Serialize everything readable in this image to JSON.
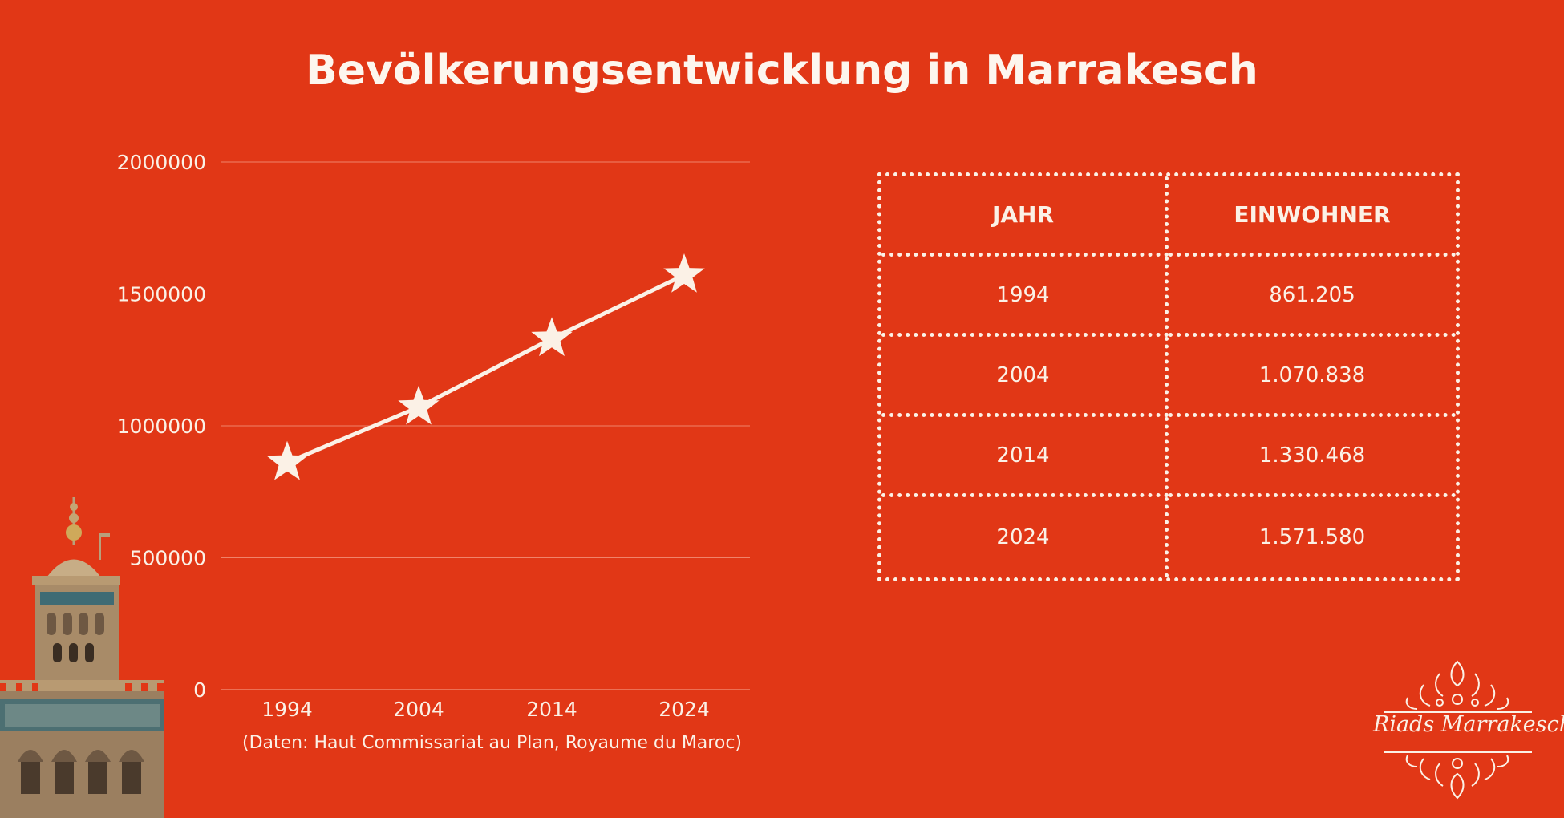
{
  "title": "Bevölkerungsentwicklung in Marrakesch",
  "source": "(Daten: Haut Commissariat au Plan, Royaume du Maroc)",
  "chart_data": {
    "type": "line",
    "title": "Bevölkerungsentwicklung in Marrakesch",
    "xlabel": "",
    "ylabel": "",
    "categories": [
      "1994",
      "2004",
      "2014",
      "2024"
    ],
    "values": [
      861205,
      1070838,
      1330468,
      1571580
    ],
    "yticks": [
      {
        "value": 0,
        "label": "0"
      },
      {
        "value": 500000,
        "label": "500000"
      },
      {
        "value": 1000000,
        "label": "1000000"
      },
      {
        "value": 1500000,
        "label": "1500000"
      },
      {
        "value": 2000000,
        "label": "2000000"
      }
    ],
    "ylim": [
      0,
      2000000
    ],
    "grid": true,
    "marker": "star",
    "colors": {
      "line": "#fbf1e6",
      "grid": "#f0836a"
    }
  },
  "table": {
    "headers": [
      "JAHR",
      "EINWOHNER"
    ],
    "rows": [
      [
        "1994",
        "861.205"
      ],
      [
        "2004",
        "1.070.838"
      ],
      [
        "2014",
        "1.330.468"
      ],
      [
        "2024",
        "1.571.580"
      ]
    ]
  },
  "logo": {
    "text": "Riads Marrakesch"
  },
  "colors": {
    "background": "#e13716",
    "foreground": "#fbf1e6"
  }
}
